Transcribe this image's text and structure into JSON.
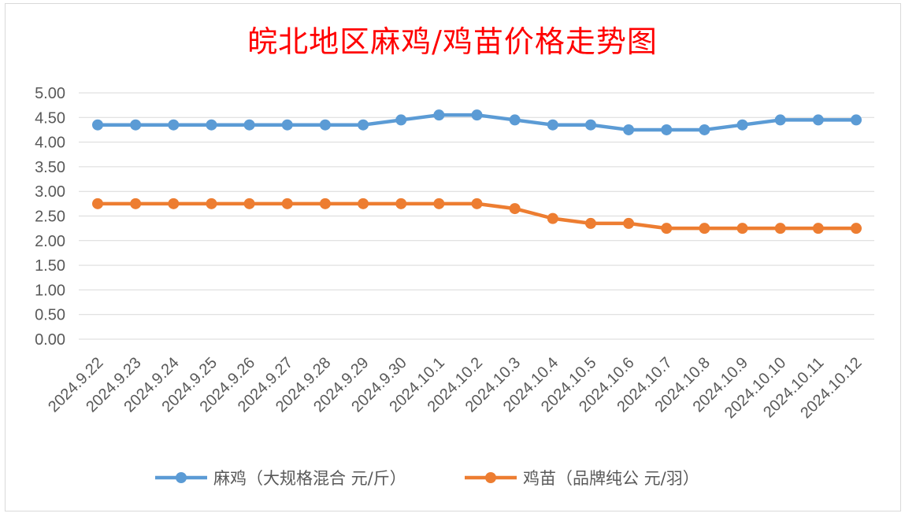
{
  "chart_data": {
    "type": "line",
    "title": "皖北地区麻鸡/鸡苗价格走势图",
    "categories": [
      "2024.9.22",
      "2024.9.23",
      "2024.9.24",
      "2024.9.25",
      "2024.9.26",
      "2024.9.27",
      "2024.9.28",
      "2024.9.29",
      "2024.9.30",
      "2024.10.1",
      "2024.10.2",
      "2024.10.3",
      "2024.10.4",
      "2024.10.5",
      "2024.10.6",
      "2024.10.7",
      "2024.10.8",
      "2024.10.9",
      "2024.10.10",
      "2024.10.11",
      "2024.10.12"
    ],
    "y_ticks": [
      "0.00",
      "0.50",
      "1.00",
      "1.50",
      "2.00",
      "2.50",
      "3.00",
      "3.50",
      "4.00",
      "4.50",
      "5.00"
    ],
    "ylim": [
      0,
      5
    ],
    "grid": true,
    "legend_position": "bottom",
    "series": [
      {
        "name": "麻鸡（大规格混合 元/斤）",
        "color": "#5b9bd5",
        "values": [
          4.35,
          4.35,
          4.35,
          4.35,
          4.35,
          4.35,
          4.35,
          4.35,
          4.45,
          4.55,
          4.55,
          4.45,
          4.35,
          4.35,
          4.25,
          4.25,
          4.25,
          4.35,
          4.45,
          4.45,
          4.45
        ]
      },
      {
        "name": "鸡苗（品牌纯公 元/羽）",
        "color": "#ed7d31",
        "values": [
          2.75,
          2.75,
          2.75,
          2.75,
          2.75,
          2.75,
          2.75,
          2.75,
          2.75,
          2.75,
          2.75,
          2.65,
          2.45,
          2.35,
          2.35,
          2.25,
          2.25,
          2.25,
          2.25,
          2.25,
          2.25
        ]
      }
    ]
  }
}
